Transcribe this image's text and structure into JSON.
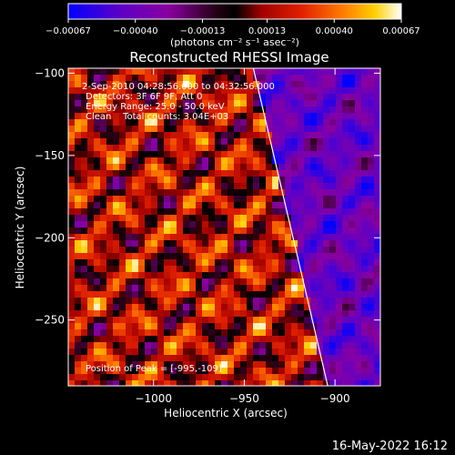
{
  "chart_data": {
    "type": "heatmap",
    "title": "Reconstructed RHESSI Image",
    "xlabel": "Heliocentric X (arcsec)",
    "ylabel": "Heliocentric Y (arcsec)",
    "xlim": [
      -1047,
      -875
    ],
    "ylim": [
      -290,
      -97
    ],
    "xticks": [
      -1000,
      -950,
      -900
    ],
    "xtick_labels": [
      "−1000",
      "−950",
      "−900"
    ],
    "yticks": [
      -100,
      -150,
      -200,
      -250
    ],
    "ytick_labels": [
      "−100",
      "−150",
      "−200",
      "−250"
    ],
    "colorbar": {
      "min": -0.00067,
      "max": 0.00067,
      "ticks": [
        -0.00067,
        -0.0004,
        -0.00013,
        0.00013,
        0.0004,
        0.00067
      ],
      "tick_labels": [
        "−0.00067",
        "−0.00040",
        "−0.00013",
        "0.00013",
        "0.00040",
        "0.00067"
      ],
      "label": "(photons cm⁻² s⁻¹ asec⁻²)",
      "colors": [
        "#0000ff",
        "#5a00c8",
        "#8a00a0",
        "#000000",
        "#a00000",
        "#e02000",
        "#ff7800",
        "#ffd000",
        "#ffffff"
      ]
    },
    "annotations": [
      "2-Sep-2010 04:28:56.000 to 04:32:56.000",
      "Detectors: 3F 6F 9F, Att 0",
      "Energy Range: 25.0 - 50.0 keV",
      "Clean    Total counts: 3.04E+03",
      "Position of Peak = [-995,-109]"
    ],
    "limb_line": {
      "x": [
        -945,
        -904
      ],
      "y": [
        -97,
        -290
      ]
    },
    "grid": false
  },
  "footer": {
    "timestamp": "16-May-2022 16:12"
  }
}
